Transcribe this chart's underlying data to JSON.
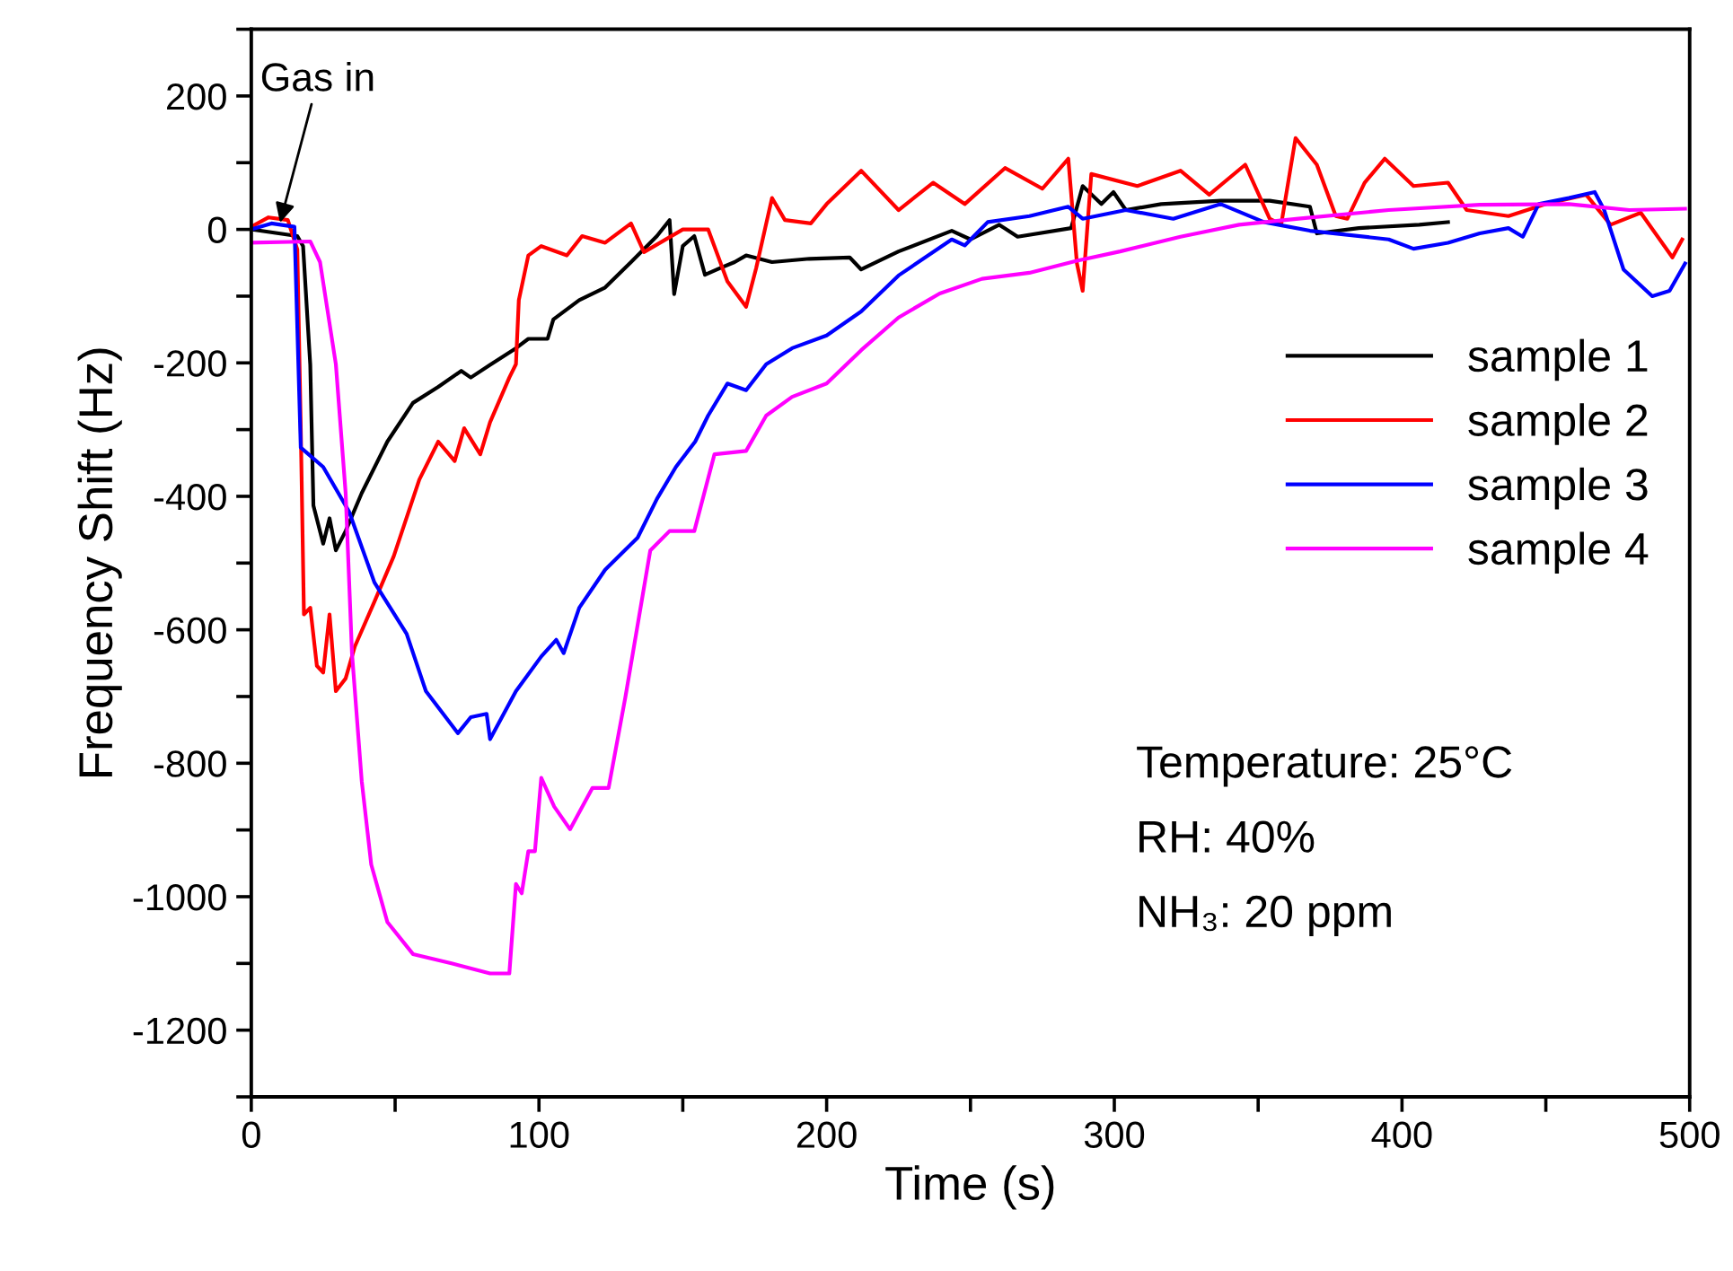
{
  "chart_data": {
    "type": "line",
    "xlabel": "Time (s)",
    "ylabel": "Frequency Shift (Hz)",
    "xlim": [
      0,
      500
    ],
    "ylim": [
      -1300,
      300
    ],
    "xticks": [
      0,
      {
        "value": 50,
        "label": null
      },
      100,
      {
        "value": 150,
        "label": null
      },
      200,
      {
        "value": 250,
        "label": null
      },
      300,
      {
        "value": 350,
        "label": null
      },
      400,
      {
        "value": 450,
        "label": null
      },
      500
    ],
    "yticks": [
      {
        "value": -1300,
        "label": null
      },
      -1200,
      {
        "value": -1100,
        "label": null
      },
      -1000,
      {
        "value": -900,
        "label": null
      },
      -800,
      {
        "value": -700,
        "label": null
      },
      -600,
      {
        "value": -500,
        "label": null
      },
      -400,
      {
        "value": -300,
        "label": null
      },
      -200,
      {
        "value": -100,
        "label": null
      },
      0,
      {
        "value": 100,
        "label": null
      },
      200,
      {
        "value": 300,
        "label": null
      }
    ],
    "grid": false,
    "legend": "right",
    "marker": "none",
    "line_style": "solid",
    "annotations": [
      {
        "text": "Gas in",
        "x": 10,
        "y": 10
      },
      "Temperature: 25°C",
      "RH: 40%",
      "NH₃: 20 ppm"
    ],
    "series": [
      {
        "name": "sample 1",
        "color": "#000000",
        "x": [
          0,
          16,
          18,
          20.5,
          21.6,
          25,
          27.2,
          29.4,
          32.8,
          38.4,
          47.3,
          56.2,
          65,
          73,
          76.3,
          83,
          92,
          96.3,
          103,
          105,
          114,
          123,
          132,
          141,
          145.4,
          147,
          150,
          154,
          157.7,
          163,
          168,
          172,
          181,
          194,
          208,
          212,
          225,
          243.5,
          250,
          260,
          266.4,
          285,
          289,
          295.5,
          299.7,
          304,
          316.3,
          337,
          354,
          368,
          370.4,
          385,
          406,
          416
        ],
        "values": [
          0,
          -10,
          -25,
          -203,
          -414,
          -471,
          -433,
          -481,
          -452,
          -395,
          -318,
          -260,
          -236,
          -212,
          -222,
          -203,
          -178,
          -164,
          -164,
          -135,
          -106,
          -87,
          -49,
          -10,
          14,
          -97,
          -25,
          -10,
          -68,
          -58,
          -49,
          -39,
          -49,
          -44,
          -42,
          -60,
          -33,
          -2,
          -15,
          7,
          -11,
          2,
          65,
          38,
          56,
          29,
          38,
          43,
          43,
          34,
          -6,
          2,
          7,
          11
        ]
      },
      {
        "name": "sample 2",
        "color": "#ff0000",
        "x": [
          0,
          6,
          12.7,
          16,
          17.2,
          18.3,
          20.5,
          22.8,
          25,
          27.2,
          29.4,
          32.8,
          36,
          42.8,
          49.5,
          58.4,
          65,
          70.7,
          74,
          79.6,
          83,
          89.7,
          92,
          93,
          96.3,
          100.8,
          109.7,
          115,
          123,
          132,
          136.5,
          150,
          158.8,
          165.5,
          172,
          175.5,
          181,
          185.5,
          194.5,
          200,
          212,
          225,
          237,
          248,
          262,
          275,
          284,
          287,
          289,
          292,
          308,
          323,
          333,
          345.5,
          354,
          358,
          363,
          370.4,
          377,
          381,
          387,
          394,
          404,
          416,
          422.5,
          437,
          450,
          464,
          472.5,
          483,
          494,
          497.4
        ],
        "values": [
          4,
          18,
          14,
          -30,
          -298,
          -577,
          -567,
          -654,
          -664,
          -577,
          -692,
          -673,
          -625,
          -558,
          -490,
          -375,
          -318,
          -347,
          -298,
          -337,
          -289,
          -222,
          -202,
          -106,
          -39,
          -25,
          -39,
          -10,
          -20,
          9,
          -34,
          0,
          0,
          -78,
          -116,
          -58,
          47,
          14,
          9,
          38,
          88,
          29,
          70,
          38,
          92,
          61,
          106,
          -51,
          -92,
          83,
          65,
          88,
          52,
          97,
          16,
          7,
          137,
          97,
          20,
          16,
          70,
          106,
          65,
          70,
          29,
          20,
          38,
          52,
          7,
          25,
          -42,
          -15
        ]
      },
      {
        "name": "sample 3",
        "color": "#0000ff",
        "x": [
          0,
          7,
          15,
          17.2,
          25,
          34,
          42.8,
          54,
          60.7,
          71.8,
          76.3,
          81.8,
          83,
          92,
          100.8,
          106,
          108.6,
          114,
          123,
          134.3,
          141,
          147.6,
          154.3,
          158.8,
          165.5,
          172,
          179,
          188,
          200,
          212,
          225,
          243.5,
          248,
          256,
          270.5,
          284,
          289,
          304,
          320.5,
          337,
          352,
          368,
          395.4,
          404,
          416,
          427,
          437,
          442,
          447.5,
          458,
          467,
          470.3,
          477,
          487,
          493,
          498.4
        ],
        "values": [
          0,
          9,
          4,
          -327,
          -356,
          -423,
          -529,
          -606,
          -692,
          -755,
          -731,
          -726,
          -764,
          -692,
          -640,
          -615,
          -635,
          -567,
          -510,
          -462,
          -404,
          -356,
          -318,
          -279,
          -231,
          -241,
          -202,
          -178,
          -159,
          -123,
          -69,
          -15,
          -24,
          11,
          20,
          34,
          16,
          29,
          16,
          38,
          11,
          -2,
          -15,
          -29,
          -20,
          -6,
          2,
          -11,
          38,
          47,
          56,
          29,
          -60,
          -100,
          -92,
          -51
        ]
      },
      {
        "name": "sample 4",
        "color": "#ff00ff",
        "x": [
          0,
          20.5,
          23.9,
          29.4,
          32.8,
          35,
          38.4,
          41.7,
          47.3,
          56.2,
          69.6,
          83,
          89.7,
          92,
          94,
          96.3,
          98.6,
          100.8,
          105.3,
          110.8,
          118.6,
          124.2,
          130,
          138.7,
          145.4,
          154,
          161,
          172,
          179,
          188,
          200,
          212,
          225,
          239.3,
          254,
          270.5,
          287,
          302,
          323,
          343.4,
          364,
          395.4,
          427,
          458,
          479,
          498.4
        ],
        "values": [
          -20,
          -18,
          -49,
          -202,
          -395,
          -635,
          -827,
          -952,
          -1038,
          -1086,
          -1100,
          -1115,
          -1115,
          -981,
          -995,
          -932,
          -932,
          -822,
          -865,
          -899,
          -837,
          -837,
          -702,
          -481,
          -452,
          -452,
          -337,
          -332,
          -279,
          -251,
          -231,
          -181,
          -132,
          -96,
          -74,
          -65,
          -47,
          -33,
          -11,
          7,
          16,
          29,
          37,
          38,
          29,
          31
        ]
      }
    ]
  }
}
